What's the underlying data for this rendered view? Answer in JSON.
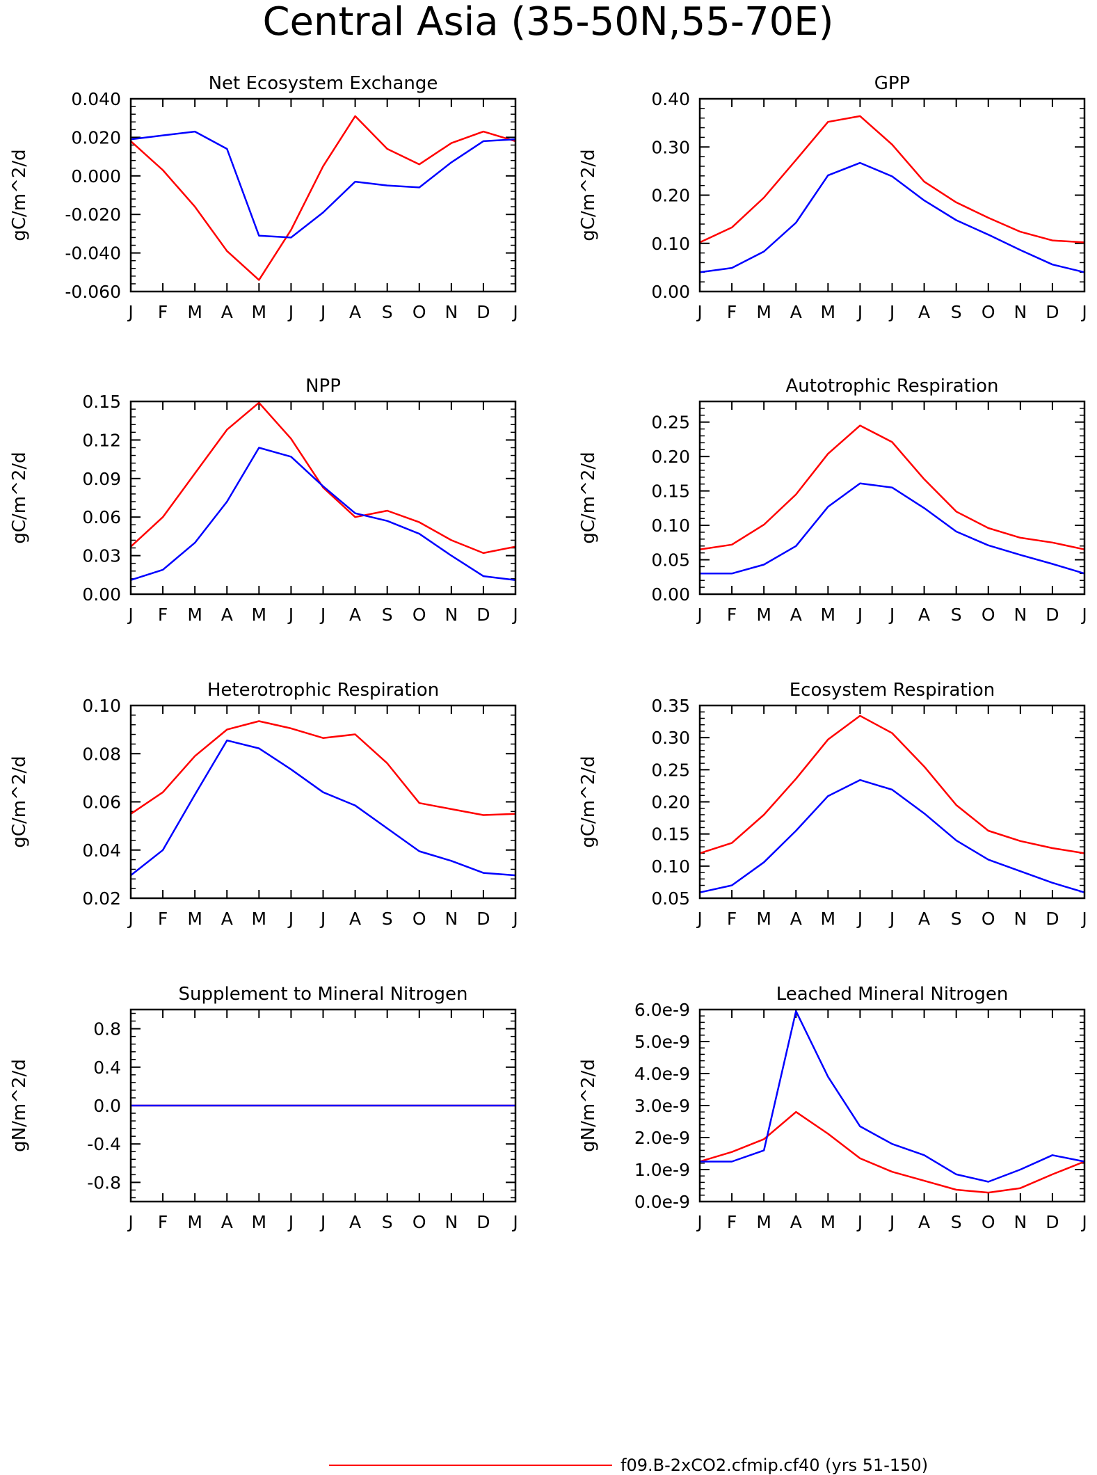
{
  "figure": {
    "title": "Central Asia (35-50N,55-70E)",
    "legend": {
      "series_red_label": "f09.B-2xCO2.cfmip.cf40 (yrs 51-150)",
      "series_red_color": "#ff0000",
      "series_blue_color": "#0000ff",
      "placement": "bottom-center"
    }
  },
  "chart_data": [
    {
      "type": "line",
      "title": "Net Ecosystem Exchange",
      "ylabel": "gC/m^2/d",
      "x": [
        "J",
        "F",
        "M",
        "A",
        "M",
        "J",
        "J",
        "A",
        "S",
        "O",
        "N",
        "D",
        "J"
      ],
      "ylim": [
        -0.06,
        0.04
      ],
      "yticks": [
        "0.040",
        "0.020",
        "0.000",
        "-0.020",
        "-0.040",
        "-0.060"
      ],
      "ytick_values": [
        0.04,
        0.02,
        0.0,
        -0.02,
        -0.04,
        -0.06
      ],
      "series": [
        {
          "color": "#ff0000",
          "values": [
            0.018,
            0.003,
            -0.016,
            -0.039,
            -0.054,
            -0.028,
            0.005,
            0.031,
            0.014,
            0.006,
            0.017,
            0.023,
            0.018
          ]
        },
        {
          "color": "#0000ff",
          "values": [
            0.019,
            0.021,
            0.023,
            0.014,
            -0.031,
            -0.032,
            -0.019,
            -0.003,
            -0.005,
            -0.006,
            0.007,
            0.018,
            0.019
          ]
        }
      ]
    },
    {
      "type": "line",
      "title": "GPP",
      "ylabel": "gC/m^2/d",
      "x": [
        "J",
        "F",
        "M",
        "A",
        "M",
        "J",
        "J",
        "A",
        "S",
        "O",
        "N",
        "D",
        "J"
      ],
      "ylim": [
        0.0,
        0.4
      ],
      "yticks": [
        "0.40",
        "0.30",
        "0.20",
        "0.10",
        "0.00"
      ],
      "ytick_values": [
        0.4,
        0.3,
        0.2,
        0.1,
        0.0
      ],
      "series": [
        {
          "color": "#ff0000",
          "values": [
            0.102,
            0.133,
            0.195,
            0.273,
            0.352,
            0.364,
            0.305,
            0.228,
            0.185,
            0.153,
            0.124,
            0.106,
            0.102
          ]
        },
        {
          "color": "#0000ff",
          "values": [
            0.04,
            0.049,
            0.083,
            0.143,
            0.241,
            0.267,
            0.239,
            0.189,
            0.148,
            0.118,
            0.086,
            0.056,
            0.04
          ]
        }
      ]
    },
    {
      "type": "line",
      "title": "NPP",
      "ylabel": "gC/m^2/d",
      "x": [
        "J",
        "F",
        "M",
        "A",
        "M",
        "J",
        "J",
        "A",
        "S",
        "O",
        "N",
        "D",
        "J"
      ],
      "ylim": [
        0.0,
        0.15
      ],
      "yticks": [
        "0.15",
        "0.12",
        "0.09",
        "0.06",
        "0.03",
        "0.00"
      ],
      "ytick_values": [
        0.15,
        0.12,
        0.09,
        0.06,
        0.03,
        0.0
      ],
      "series": [
        {
          "color": "#ff0000",
          "values": [
            0.037,
            0.06,
            0.094,
            0.128,
            0.149,
            0.121,
            0.083,
            0.06,
            0.065,
            0.056,
            0.042,
            0.032,
            0.037
          ]
        },
        {
          "color": "#0000ff",
          "values": [
            0.011,
            0.019,
            0.04,
            0.072,
            0.114,
            0.107,
            0.084,
            0.063,
            0.057,
            0.047,
            0.03,
            0.014,
            0.011
          ]
        }
      ]
    },
    {
      "type": "line",
      "title": "Autotrophic Respiration",
      "ylabel": "gC/m^2/d",
      "x": [
        "J",
        "F",
        "M",
        "A",
        "M",
        "J",
        "J",
        "A",
        "S",
        "O",
        "N",
        "D",
        "J"
      ],
      "ylim": [
        0.0,
        0.28
      ],
      "yticks": [
        "0.25",
        "0.20",
        "0.15",
        "0.10",
        "0.05",
        "0.00"
      ],
      "ytick_values": [
        0.25,
        0.2,
        0.15,
        0.1,
        0.05,
        0.0
      ],
      "series": [
        {
          "color": "#ff0000",
          "values": [
            0.065,
            0.072,
            0.101,
            0.145,
            0.204,
            0.245,
            0.221,
            0.167,
            0.12,
            0.096,
            0.082,
            0.075,
            0.065
          ]
        },
        {
          "color": "#0000ff",
          "values": [
            0.03,
            0.03,
            0.043,
            0.07,
            0.127,
            0.161,
            0.155,
            0.125,
            0.091,
            0.071,
            0.057,
            0.044,
            0.03
          ]
        }
      ]
    },
    {
      "type": "line",
      "title": "Heterotrophic Respiration",
      "ylabel": "gC/m^2/d",
      "x": [
        "J",
        "F",
        "M",
        "A",
        "M",
        "J",
        "J",
        "A",
        "S",
        "O",
        "N",
        "D",
        "J"
      ],
      "ylim": [
        0.02,
        0.1
      ],
      "yticks": [
        "0.10",
        "0.08",
        "0.06",
        "0.04",
        "0.02"
      ],
      "ytick_values": [
        0.1,
        0.08,
        0.06,
        0.04,
        0.02
      ],
      "series": [
        {
          "color": "#ff0000",
          "values": [
            0.055,
            0.064,
            0.079,
            0.09,
            0.0935,
            0.0905,
            0.0865,
            0.088,
            0.076,
            0.0595,
            0.057,
            0.0545,
            0.055
          ]
        },
        {
          "color": "#0000ff",
          "values": [
            0.0295,
            0.04,
            0.063,
            0.0855,
            0.0822,
            0.0735,
            0.064,
            0.0585,
            0.049,
            0.0395,
            0.0355,
            0.0305,
            0.0295
          ]
        }
      ]
    },
    {
      "type": "line",
      "title": "Ecosystem Respiration",
      "ylabel": "gC/m^2/d",
      "x": [
        "J",
        "F",
        "M",
        "A",
        "M",
        "J",
        "J",
        "A",
        "S",
        "O",
        "N",
        "D",
        "J"
      ],
      "ylim": [
        0.05,
        0.35
      ],
      "yticks": [
        "0.35",
        "0.30",
        "0.25",
        "0.20",
        "0.15",
        "0.10",
        "0.05"
      ],
      "ytick_values": [
        0.35,
        0.3,
        0.25,
        0.2,
        0.15,
        0.1,
        0.05
      ],
      "series": [
        {
          "color": "#ff0000",
          "values": [
            0.12,
            0.136,
            0.18,
            0.236,
            0.297,
            0.334,
            0.307,
            0.255,
            0.195,
            0.155,
            0.139,
            0.128,
            0.12
          ]
        },
        {
          "color": "#0000ff",
          "values": [
            0.059,
            0.07,
            0.106,
            0.155,
            0.209,
            0.234,
            0.219,
            0.182,
            0.14,
            0.11,
            0.092,
            0.074,
            0.059
          ]
        }
      ]
    },
    {
      "type": "line",
      "title": "Supplement to Mineral Nitrogen",
      "ylabel": "gN/m^2/d",
      "x": [
        "J",
        "F",
        "M",
        "A",
        "M",
        "J",
        "J",
        "A",
        "S",
        "O",
        "N",
        "D",
        "J"
      ],
      "ylim": [
        -1.0,
        1.0
      ],
      "yticks": [
        "0.8",
        "0.4",
        "0.0",
        "-0.4",
        "-0.8"
      ],
      "ytick_values": [
        0.8,
        0.4,
        0.0,
        -0.4,
        -0.8
      ],
      "series": [
        {
          "color": "#ff0000",
          "values": [
            0,
            0,
            0,
            0,
            0,
            0,
            0,
            0,
            0,
            0,
            0,
            0,
            0
          ]
        },
        {
          "color": "#0000ff",
          "values": [
            0,
            0,
            0,
            0,
            0,
            0,
            0,
            0,
            0,
            0,
            0,
            0,
            0
          ]
        }
      ]
    },
    {
      "type": "line",
      "title": "Leached Mineral Nitrogen",
      "ylabel": "gN/m^2/d",
      "x": [
        "J",
        "F",
        "M",
        "A",
        "M",
        "J",
        "J",
        "A",
        "S",
        "O",
        "N",
        "D",
        "J"
      ],
      "ylim": [
        0.0,
        6e-09
      ],
      "yticks": [
        "6.0e-9",
        "5.0e-9",
        "4.0e-9",
        "3.0e-9",
        "2.0e-9",
        "1.0e-9",
        "0.0e-9"
      ],
      "ytick_values": [
        6e-09,
        5e-09,
        4e-09,
        3e-09,
        2e-09,
        1e-09,
        0.0
      ],
      "series": [
        {
          "color": "#ff0000",
          "values": [
            1.25e-09,
            1.55e-09,
            1.95e-09,
            2.8e-09,
            2.12e-09,
            1.35e-09,
            9.3e-10,
            6.5e-10,
            3.7e-10,
            2.8e-10,
            4.2e-10,
            8.5e-10,
            1.25e-09
          ]
        },
        {
          "color": "#0000ff",
          "values": [
            1.25e-09,
            1.25e-09,
            1.6e-09,
            5.95e-09,
            3.9e-09,
            2.35e-09,
            1.8e-09,
            1.45e-09,
            8.5e-10,
            6.2e-10,
            1e-09,
            1.45e-09,
            1.25e-09
          ]
        }
      ]
    }
  ]
}
